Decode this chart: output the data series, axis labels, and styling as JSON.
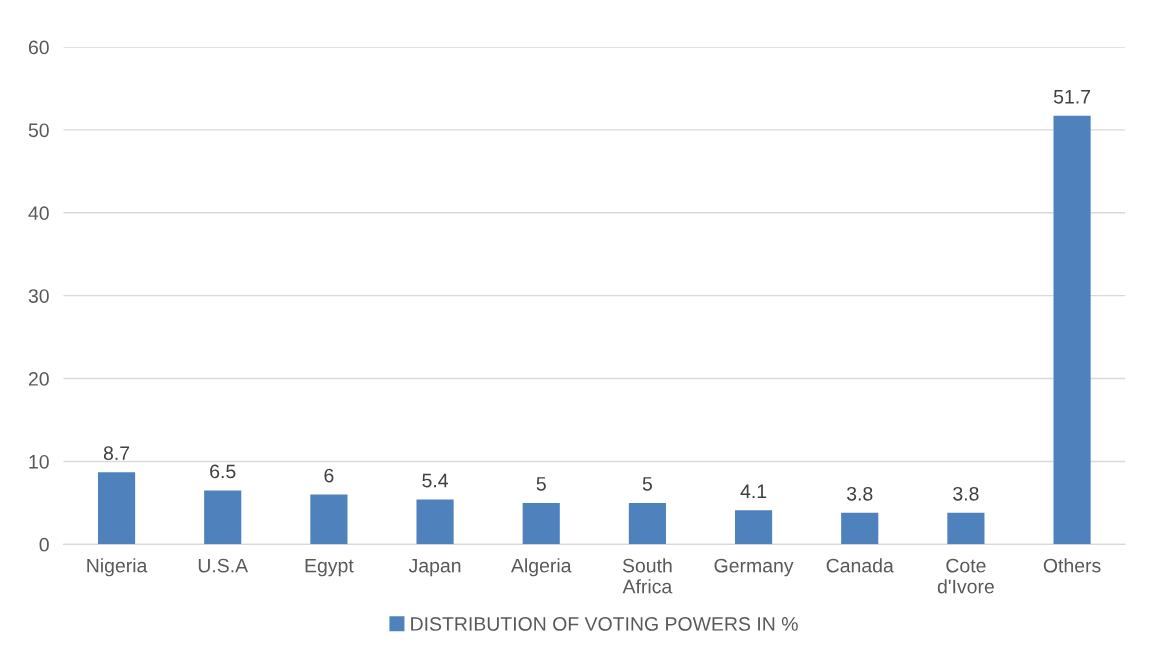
{
  "chart_data": {
    "type": "bar",
    "categories": [
      "Nigeria",
      "U.S.A",
      "Egypt",
      "Japan",
      "Algeria",
      "South\nAfrica",
      "Germany",
      "Canada",
      "Cote\nd'Ivore",
      "Others"
    ],
    "series": [
      {
        "name": "DISTRIBUTION OF VOTING POWERS IN %",
        "color": "#4f81bd",
        "values": [
          8.7,
          6.5,
          6,
          5.4,
          5,
          5,
          4.1,
          3.8,
          3.8,
          51.7
        ]
      }
    ],
    "ylim": [
      0,
      60
    ],
    "yticks": [
      0,
      10,
      20,
      30,
      40,
      50,
      60
    ],
    "grid": "y",
    "legend": "bottom",
    "data_labels": true
  }
}
